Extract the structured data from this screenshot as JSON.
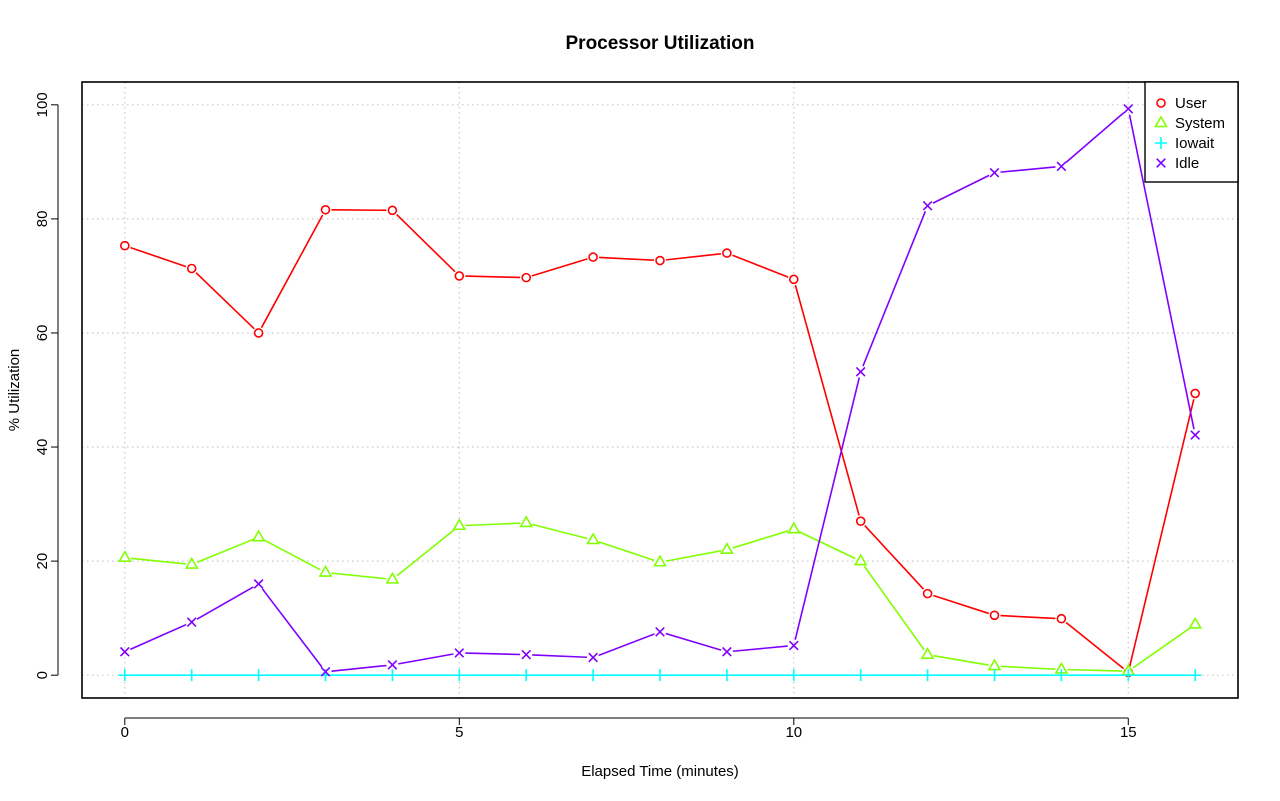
{
  "chart_data": {
    "type": "line",
    "title": "Processor Utilization",
    "xlabel": "Elapsed Time (minutes)",
    "ylabel": "% Utilization",
    "xlim": [
      -0.64,
      16.64
    ],
    "ylim": [
      -4,
      104
    ],
    "xticks": [
      0,
      5,
      10,
      15
    ],
    "yticks": [
      0,
      20,
      40,
      60,
      80,
      100
    ],
    "grid": true,
    "legend_position": "top-right",
    "x": [
      0,
      1,
      2,
      3,
      4,
      5,
      6,
      7,
      8,
      9,
      10,
      11,
      12,
      13,
      14,
      15,
      16
    ],
    "series": [
      {
        "name": "User",
        "color": "#ff0000",
        "marker": "circle",
        "values": [
          75.3,
          71.3,
          60.0,
          81.6,
          81.5,
          70.0,
          69.7,
          73.3,
          72.7,
          74.0,
          69.4,
          27.0,
          14.3,
          10.5,
          9.9,
          0.5,
          49.4
        ]
      },
      {
        "name": "System",
        "color": "#80ff00",
        "marker": "triangle",
        "values": [
          20.6,
          19.4,
          24.2,
          18.0,
          16.8,
          26.2,
          26.7,
          23.7,
          19.8,
          22.0,
          25.6,
          20.0,
          3.6,
          1.6,
          1.0,
          0.7,
          8.9
        ]
      },
      {
        "name": "Iowait",
        "color": "#00ffff",
        "marker": "plus",
        "values": [
          0,
          0,
          0,
          0,
          0,
          0,
          0,
          0,
          0,
          0,
          0,
          0,
          0,
          0,
          0,
          0,
          0
        ]
      },
      {
        "name": "Idle",
        "color": "#8000ff",
        "marker": "cross",
        "values": [
          4.1,
          9.3,
          16.0,
          0.6,
          1.8,
          3.9,
          3.6,
          3.1,
          7.6,
          4.1,
          5.2,
          53.2,
          82.3,
          88.1,
          89.2,
          99.3,
          42.1
        ]
      }
    ]
  }
}
